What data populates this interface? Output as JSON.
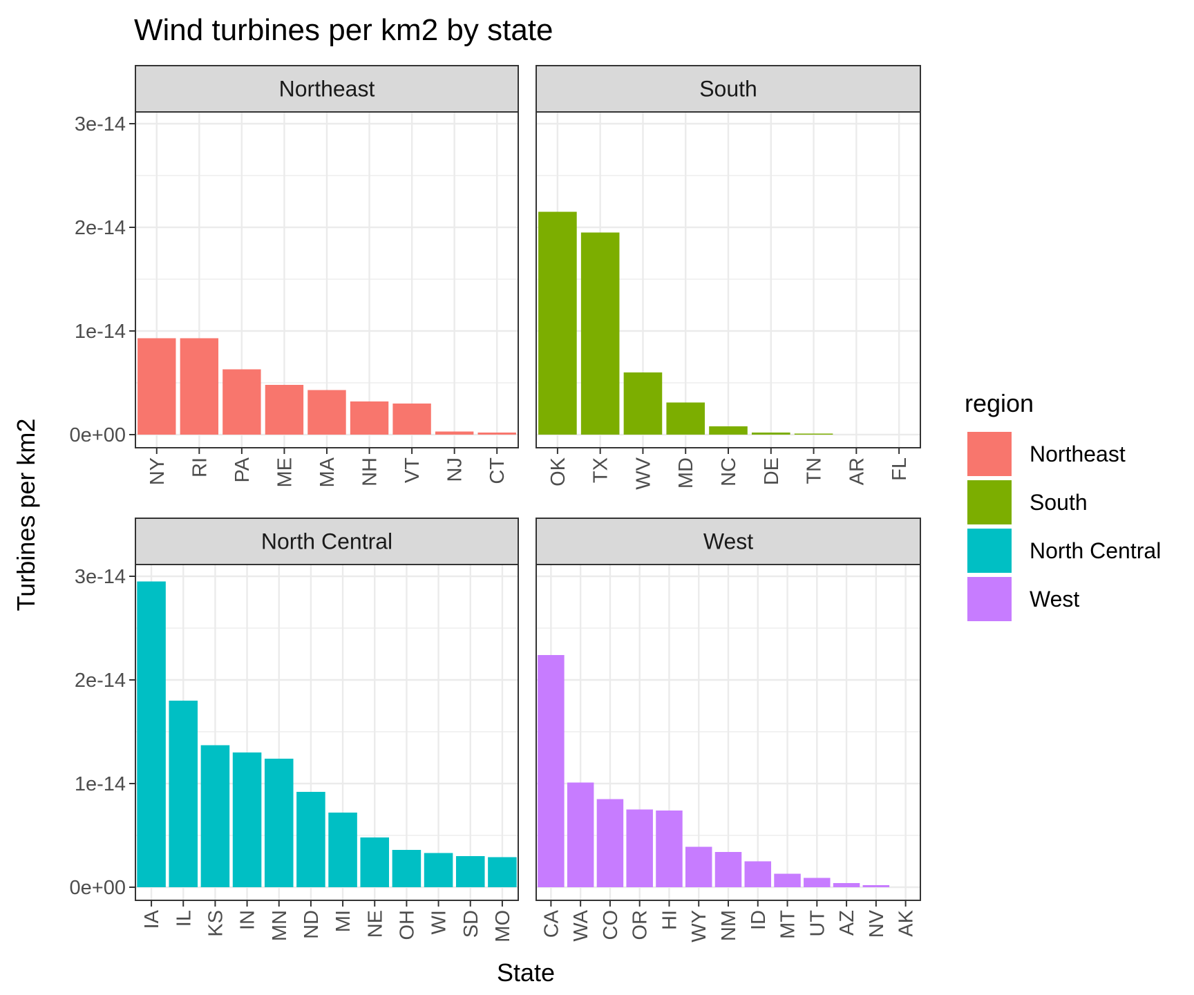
{
  "chart_data": {
    "type": "bar",
    "title": "Wind turbines per km2 by state",
    "xlabel": "State",
    "ylabel": "Turbines per km2",
    "ylim": [
      0,
      3.1e-14
    ],
    "y_ticks": [
      {
        "value": 0,
        "label": "0e+00"
      },
      {
        "value": 1e-14,
        "label": "1e-14"
      },
      {
        "value": 2e-14,
        "label": "2e-14"
      },
      {
        "value": 3e-14,
        "label": "3e-14"
      }
    ],
    "grid": true,
    "facet_layout": "2x2",
    "legend": {
      "title": "region",
      "position": "right",
      "entries": [
        {
          "label": "Northeast",
          "color": "#F8766D"
        },
        {
          "label": "South",
          "color": "#7CAE00"
        },
        {
          "label": "North Central",
          "color": "#00BFC4"
        },
        {
          "label": "West",
          "color": "#C77CFF"
        }
      ]
    },
    "panels": [
      {
        "region": "Northeast",
        "color": "#F8766D",
        "categories": [
          "NY",
          "RI",
          "PA",
          "ME",
          "MA",
          "NH",
          "VT",
          "NJ",
          "CT"
        ],
        "values": [
          9.3e-15,
          9.3e-15,
          6.3e-15,
          4.8e-15,
          4.3e-15,
          3.2e-15,
          3e-15,
          3e-16,
          2e-16
        ]
      },
      {
        "region": "South",
        "color": "#7CAE00",
        "categories": [
          "OK",
          "TX",
          "WV",
          "MD",
          "NC",
          "DE",
          "TN",
          "AR",
          "FL"
        ],
        "values": [
          2.15e-14,
          1.95e-14,
          6e-15,
          3.1e-15,
          8e-16,
          2e-16,
          1e-16,
          0,
          0
        ]
      },
      {
        "region": "North Central",
        "color": "#00BFC4",
        "categories": [
          "IA",
          "IL",
          "KS",
          "IN",
          "MN",
          "ND",
          "MI",
          "NE",
          "OH",
          "WI",
          "SD",
          "MO"
        ],
        "values": [
          2.95e-14,
          1.8e-14,
          1.37e-14,
          1.3e-14,
          1.24e-14,
          9.2e-15,
          7.2e-15,
          4.8e-15,
          3.6e-15,
          3.3e-15,
          3e-15,
          2.9e-15
        ]
      },
      {
        "region": "West",
        "color": "#C77CFF",
        "categories": [
          "CA",
          "WA",
          "CO",
          "OR",
          "HI",
          "WY",
          "NM",
          "ID",
          "MT",
          "UT",
          "AZ",
          "NV",
          "AK"
        ],
        "values": [
          2.24e-14,
          1.01e-14,
          8.5e-15,
          7.5e-15,
          7.4e-15,
          3.9e-15,
          3.4e-15,
          2.5e-15,
          1.3e-15,
          9e-16,
          4e-16,
          2e-16,
          0
        ]
      }
    ]
  }
}
